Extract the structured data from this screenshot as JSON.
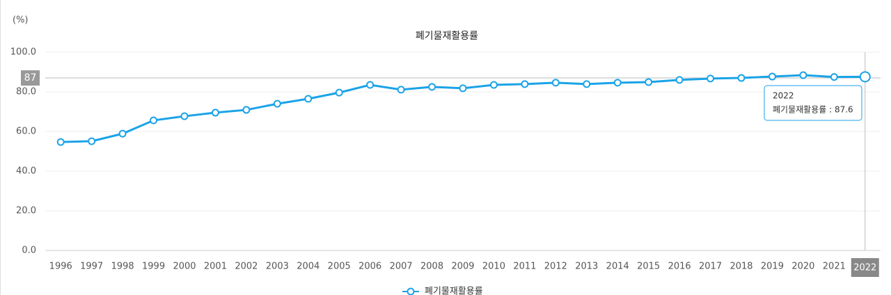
{
  "chart_data": {
    "type": "line",
    "title": "폐기물재활용률",
    "unit_label": "(%)",
    "categories": [
      "1996",
      "1997",
      "1998",
      "1999",
      "2000",
      "2001",
      "2002",
      "2003",
      "2004",
      "2005",
      "2006",
      "2007",
      "2008",
      "2009",
      "2010",
      "2011",
      "2012",
      "2013",
      "2014",
      "2015",
      "2016",
      "2017",
      "2018",
      "2019",
      "2020",
      "2021",
      "2022"
    ],
    "series": [
      {
        "name": "폐기물재활용률",
        "color": "#1aa3e8",
        "values": [
          54.7,
          55.1,
          58.9,
          65.6,
          67.7,
          69.5,
          70.9,
          74.0,
          76.5,
          79.6,
          83.5,
          81.1,
          82.5,
          81.8,
          83.5,
          83.9,
          84.6,
          83.9,
          84.6,
          84.9,
          86.0,
          86.7,
          87.0,
          87.7,
          88.4,
          87.5,
          87.6
        ]
      }
    ],
    "ylim": [
      0,
      100
    ],
    "yticks": [
      {
        "value": 0,
        "label": "0.0"
      },
      {
        "value": 20,
        "label": "20.0"
      },
      {
        "value": 40,
        "label": "40.0"
      },
      {
        "value": 60,
        "label": "60.0"
      },
      {
        "value": 80,
        "label": "80.0"
      },
      {
        "value": 100,
        "label": "100.0"
      }
    ],
    "grid": true,
    "crosshair_y": 87,
    "highlight_index": 26,
    "tooltip": {
      "title": "2022",
      "text": "폐기물재활용률 : 87.6"
    }
  }
}
